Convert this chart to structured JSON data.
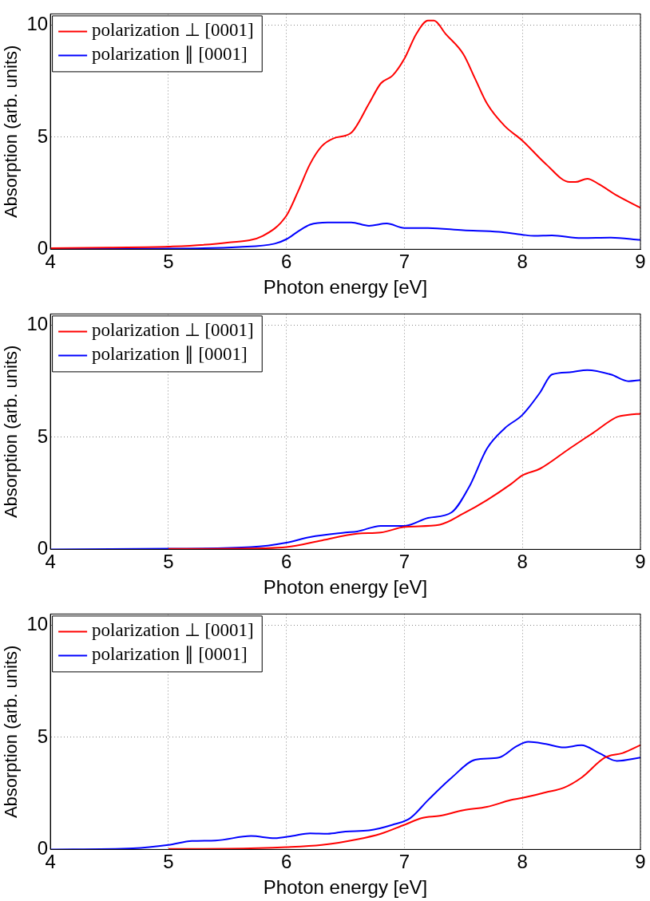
{
  "chart_data": [
    {
      "type": "line",
      "xlabel": "Photon energy [eV]",
      "ylabel": "Absorption (arb. units)",
      "xlim": [
        4,
        9
      ],
      "ylim": [
        0,
        10.5
      ],
      "xticks": [
        4,
        5,
        6,
        7,
        8,
        9
      ],
      "yticks": [
        0,
        5,
        10
      ],
      "grid": true,
      "legend": "top left",
      "line_style": "solid",
      "marker": "none",
      "series": [
        {
          "name": "polarization ⊥ [0001]",
          "color": "#ff0000",
          "x": [
            4,
            4.5,
            5,
            5.5,
            5.8,
            6.0,
            6.1,
            6.2,
            6.3,
            6.4,
            6.55,
            6.7,
            6.8,
            6.9,
            7.0,
            7.1,
            7.2,
            7.25,
            7.35,
            7.5,
            7.6,
            7.7,
            7.85,
            8.0,
            8.2,
            8.4,
            8.45,
            8.55,
            8.65,
            8.8,
            9.0
          ],
          "values": [
            0.05,
            0.08,
            0.12,
            0.3,
            0.6,
            1.5,
            2.6,
            3.8,
            4.6,
            4.95,
            5.2,
            6.5,
            7.4,
            7.75,
            8.5,
            9.6,
            10.2,
            10.2,
            9.6,
            8.7,
            7.6,
            6.5,
            5.5,
            4.85,
            3.8,
            3.0,
            3.0,
            3.15,
            2.9,
            2.4,
            1.85
          ]
        },
        {
          "name": "polarization ∥ [0001]",
          "color": "#0000ff",
          "x": [
            4,
            5,
            5.6,
            5.9,
            6.0,
            6.1,
            6.2,
            6.35,
            6.55,
            6.7,
            6.85,
            7.0,
            7.2,
            7.5,
            7.8,
            8.0,
            8.1,
            8.25,
            8.5,
            8.75,
            9.0
          ],
          "values": [
            0.02,
            0.03,
            0.1,
            0.25,
            0.45,
            0.8,
            1.1,
            1.2,
            1.2,
            1.05,
            1.15,
            0.95,
            0.95,
            0.85,
            0.78,
            0.65,
            0.6,
            0.62,
            0.5,
            0.52,
            0.42
          ]
        }
      ]
    },
    {
      "type": "line",
      "xlabel": "Photon energy [eV]",
      "ylabel": "Absorption (arb. units)",
      "xlim": [
        4,
        9
      ],
      "ylim": [
        0,
        10.5
      ],
      "xticks": [
        4,
        5,
        6,
        7,
        8,
        9
      ],
      "yticks": [
        0,
        5,
        10
      ],
      "grid": true,
      "legend": "top left",
      "line_style": "solid",
      "marker": "none",
      "series": [
        {
          "name": "polarization ⊥ [0001]",
          "color": "#ff0000",
          "x": [
            5,
            5.8,
            6.0,
            6.3,
            6.6,
            6.8,
            7.0,
            7.3,
            7.5,
            7.7,
            7.9,
            8.0,
            8.15,
            8.4,
            8.6,
            8.8,
            8.9,
            9.0
          ],
          "values": [
            0.02,
            0.05,
            0.1,
            0.4,
            0.7,
            0.75,
            1.0,
            1.1,
            1.6,
            2.2,
            2.9,
            3.3,
            3.6,
            4.5,
            5.2,
            5.9,
            6.0,
            6.05
          ]
        },
        {
          "name": "polarization ∥ [0001]",
          "color": "#0000ff",
          "x": [
            4,
            5,
            5.7,
            6.0,
            6.2,
            6.5,
            6.6,
            6.8,
            7.0,
            7.2,
            7.4,
            7.55,
            7.7,
            7.85,
            8.0,
            8.15,
            8.25,
            8.4,
            8.55,
            8.75,
            8.9,
            9.0
          ],
          "values": [
            0,
            0.03,
            0.1,
            0.3,
            0.55,
            0.75,
            0.8,
            1.05,
            1.05,
            1.4,
            1.65,
            2.8,
            4.5,
            5.4,
            6.0,
            7.0,
            7.8,
            7.9,
            8.0,
            7.8,
            7.5,
            7.55
          ]
        }
      ]
    },
    {
      "type": "line",
      "xlabel": "Photon energy [eV]",
      "ylabel": "Absorption (arb. units)",
      "xlim": [
        4,
        9
      ],
      "ylim": [
        0,
        10.5
      ],
      "xticks": [
        4,
        5,
        6,
        7,
        8,
        9
      ],
      "yticks": [
        0,
        5,
        10
      ],
      "grid": true,
      "legend": "top left",
      "line_style": "solid",
      "marker": "none",
      "series": [
        {
          "name": "polarization ⊥ [0001]",
          "color": "#ff0000",
          "x": [
            5,
            5.5,
            6.0,
            6.3,
            6.6,
            6.8,
            7.0,
            7.15,
            7.3,
            7.5,
            7.7,
            7.9,
            8.0,
            8.2,
            8.35,
            8.5,
            8.7,
            8.85,
            9.0
          ],
          "values": [
            0.02,
            0.03,
            0.1,
            0.2,
            0.45,
            0.7,
            1.1,
            1.4,
            1.5,
            1.75,
            1.9,
            2.2,
            2.3,
            2.55,
            2.75,
            3.2,
            4.1,
            4.3,
            4.65
          ]
        },
        {
          "name": "polarization ∥ [0001]",
          "color": "#0000ff",
          "x": [
            4,
            4.7,
            5.0,
            5.2,
            5.4,
            5.7,
            5.9,
            6.05,
            6.2,
            6.35,
            6.5,
            6.7,
            6.9,
            7.05,
            7.2,
            7.4,
            7.6,
            7.8,
            7.95,
            8.05,
            8.2,
            8.35,
            8.5,
            8.65,
            8.8,
            9.0
          ],
          "values": [
            0,
            0.05,
            0.2,
            0.38,
            0.4,
            0.6,
            0.5,
            0.6,
            0.72,
            0.7,
            0.8,
            0.85,
            1.1,
            1.4,
            2.2,
            3.2,
            4.0,
            4.1,
            4.6,
            4.8,
            4.7,
            4.55,
            4.65,
            4.3,
            3.95,
            4.1
          ]
        }
      ]
    }
  ]
}
